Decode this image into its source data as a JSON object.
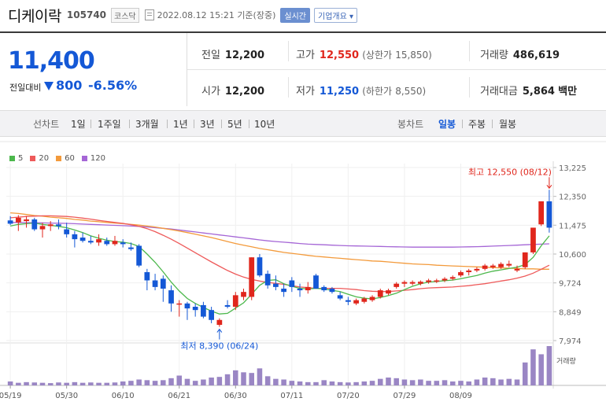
{
  "header": {
    "name": "디케이락",
    "code": "105740",
    "market": "코스닥",
    "timestamp": "2022.08.12 15:21 기준(장중)",
    "realtime_label": "실시간",
    "overview_label": "기업개요 ▾"
  },
  "quote": {
    "price": "11,400",
    "change_label": "전일대비",
    "change": "800",
    "change_rate": "-6.56%",
    "direction": "down"
  },
  "stats": {
    "prev_close_label": "전일",
    "prev_close": "12,200",
    "high_label": "고가",
    "high": "12,550",
    "upper_limit_label": "(상한가",
    "upper_limit": "15,850)",
    "volume_label": "거래량",
    "volume": "486,619",
    "open_label": "시가",
    "open": "12,200",
    "low_label": "저가",
    "low": "11,250",
    "lower_limit_label": "(하한가",
    "lower_limit": "8,550)",
    "amount_label": "거래대금",
    "amount": "5,864",
    "amount_unit": "백만"
  },
  "periods": {
    "line_label": "선차트",
    "items": [
      "1일",
      "1주일",
      "3개월",
      "1년",
      "3년",
      "5년",
      "10년"
    ],
    "candle_label": "봉차트",
    "candle_items": [
      "일봉",
      "주봉",
      "월봉"
    ],
    "selected_candle": "일봉"
  },
  "colors": {
    "up": "#e0261c",
    "down": "#1458d6",
    "ma5": "#4cb84c",
    "ma20": "#ee5a5a",
    "ma60": "#f39a3b",
    "ma120": "#a566d6",
    "volume": "#9a86c4"
  },
  "chart_data": {
    "type": "candlestick",
    "ma_legend": [
      {
        "name": "5",
        "color": "#4cb84c"
      },
      {
        "name": "20",
        "color": "#ee5a5a"
      },
      {
        "name": "60",
        "color": "#f39a3b"
      },
      {
        "name": "120",
        "color": "#a566d6"
      }
    ],
    "y_ticks": [
      13225,
      12350,
      11475,
      10600,
      9724,
      8849,
      7974
    ],
    "y_tick_labels": [
      "13,225",
      "12,350",
      "11,475",
      "10,600",
      "9,724",
      "8,849",
      "7,974"
    ],
    "ylim": [
      7974,
      13225
    ],
    "x_tick_labels": [
      "05/19",
      "05/30",
      "06/10",
      "06/21",
      "06/30",
      "07/11",
      "07/20",
      "07/29",
      "08/09"
    ],
    "x_tick_indices": [
      0,
      7,
      14,
      21,
      28,
      35,
      42,
      49,
      56
    ],
    "high_annotation": "최고 12,550 (08/12)",
    "low_annotation": "최저 8,390 (06/24)",
    "volume_label": "거래량",
    "candles": [
      {
        "o": 11620,
        "h": 11750,
        "l": 11480,
        "c": 11520
      },
      {
        "o": 11560,
        "h": 11780,
        "l": 11300,
        "c": 11700
      },
      {
        "o": 11600,
        "h": 11750,
        "l": 11400,
        "c": 11650
      },
      {
        "o": 11650,
        "h": 11700,
        "l": 11300,
        "c": 11350
      },
      {
        "o": 11350,
        "h": 11550,
        "l": 11100,
        "c": 11450
      },
      {
        "o": 11450,
        "h": 11600,
        "l": 11300,
        "c": 11500
      },
      {
        "o": 11500,
        "h": 11650,
        "l": 11350,
        "c": 11450
      },
      {
        "o": 11350,
        "h": 11550,
        "l": 11100,
        "c": 11200
      },
      {
        "o": 11200,
        "h": 11300,
        "l": 10800,
        "c": 11050
      },
      {
        "o": 11100,
        "h": 11250,
        "l": 10950,
        "c": 11000
      },
      {
        "o": 11000,
        "h": 11150,
        "l": 10900,
        "c": 10950
      },
      {
        "o": 10950,
        "h": 11200,
        "l": 10850,
        "c": 11050
      },
      {
        "o": 11000,
        "h": 11100,
        "l": 10850,
        "c": 10900
      },
      {
        "o": 10900,
        "h": 11150,
        "l": 10850,
        "c": 11000
      },
      {
        "o": 10950,
        "h": 11050,
        "l": 10800,
        "c": 10900
      },
      {
        "o": 10800,
        "h": 10950,
        "l": 10700,
        "c": 10750
      },
      {
        "o": 10850,
        "h": 10900,
        "l": 10200,
        "c": 10250
      },
      {
        "o": 10050,
        "h": 10150,
        "l": 9500,
        "c": 9800
      },
      {
        "o": 9800,
        "h": 10000,
        "l": 9500,
        "c": 9600
      },
      {
        "o": 9850,
        "h": 9950,
        "l": 9150,
        "c": 9550
      },
      {
        "o": 9500,
        "h": 9650,
        "l": 8850,
        "c": 9100
      },
      {
        "o": 9100,
        "h": 9200,
        "l": 8700,
        "c": 9100
      },
      {
        "o": 9100,
        "h": 9150,
        "l": 8600,
        "c": 8950
      },
      {
        "o": 9000,
        "h": 9100,
        "l": 8700,
        "c": 8900
      },
      {
        "o": 9050,
        "h": 9150,
        "l": 8650,
        "c": 8700
      },
      {
        "o": 8900,
        "h": 9000,
        "l": 8500,
        "c": 8600
      },
      {
        "o": 8450,
        "h": 8650,
        "l": 8390,
        "c": 8600
      },
      {
        "o": 9050,
        "h": 9200,
        "l": 8950,
        "c": 9000
      },
      {
        "o": 9000,
        "h": 9450,
        "l": 8900,
        "c": 9350
      },
      {
        "o": 9300,
        "h": 9550,
        "l": 9200,
        "c": 9450
      },
      {
        "o": 9300,
        "h": 10500,
        "l": 9200,
        "c": 10500
      },
      {
        "o": 10500,
        "h": 10600,
        "l": 9900,
        "c": 9950
      },
      {
        "o": 10000,
        "h": 10100,
        "l": 9550,
        "c": 9650
      },
      {
        "o": 9700,
        "h": 9950,
        "l": 9500,
        "c": 9600
      },
      {
        "o": 9550,
        "h": 9700,
        "l": 9300,
        "c": 9450
      },
      {
        "o": 9800,
        "h": 9900,
        "l": 9450,
        "c": 9600
      },
      {
        "o": 9550,
        "h": 9700,
        "l": 9300,
        "c": 9500
      },
      {
        "o": 9500,
        "h": 9750,
        "l": 9400,
        "c": 9600
      },
      {
        "o": 9950,
        "h": 10000,
        "l": 9550,
        "c": 9550
      },
      {
        "o": 9600,
        "h": 9650,
        "l": 9450,
        "c": 9500
      },
      {
        "o": 9550,
        "h": 9600,
        "l": 9400,
        "c": 9450
      },
      {
        "o": 9350,
        "h": 9450,
        "l": 9200,
        "c": 9250
      },
      {
        "o": 9200,
        "h": 9300,
        "l": 9050,
        "c": 9150
      },
      {
        "o": 9100,
        "h": 9250,
        "l": 9050,
        "c": 9200
      },
      {
        "o": 9150,
        "h": 9300,
        "l": 9100,
        "c": 9250
      },
      {
        "o": 9200,
        "h": 9350,
        "l": 9150,
        "c": 9300
      },
      {
        "o": 9300,
        "h": 9550,
        "l": 9250,
        "c": 9500
      },
      {
        "o": 9400,
        "h": 9550,
        "l": 9350,
        "c": 9500
      },
      {
        "o": 9600,
        "h": 9750,
        "l": 9550,
        "c": 9700
      },
      {
        "o": 9700,
        "h": 9800,
        "l": 9600,
        "c": 9750
      },
      {
        "o": 9700,
        "h": 9800,
        "l": 9650,
        "c": 9750
      },
      {
        "o": 9700,
        "h": 9800,
        "l": 9650,
        "c": 9760
      },
      {
        "o": 9750,
        "h": 9850,
        "l": 9700,
        "c": 9800
      },
      {
        "o": 9760,
        "h": 9850,
        "l": 9720,
        "c": 9800
      },
      {
        "o": 9800,
        "h": 9900,
        "l": 9750,
        "c": 9850
      },
      {
        "o": 9850,
        "h": 9950,
        "l": 9800,
        "c": 9900
      },
      {
        "o": 9950,
        "h": 10100,
        "l": 9900,
        "c": 10050
      },
      {
        "o": 10050,
        "h": 10150,
        "l": 9950,
        "c": 10100
      },
      {
        "o": 10100,
        "h": 10200,
        "l": 10050,
        "c": 10150
      },
      {
        "o": 10150,
        "h": 10300,
        "l": 10100,
        "c": 10250
      },
      {
        "o": 10200,
        "h": 10300,
        "l": 10150,
        "c": 10250
      },
      {
        "o": 10200,
        "h": 10350,
        "l": 10150,
        "c": 10300
      },
      {
        "o": 10250,
        "h": 10400,
        "l": 10200,
        "c": 10300
      },
      {
        "o": 10100,
        "h": 10250,
        "l": 10050,
        "c": 10150
      },
      {
        "o": 10200,
        "h": 10650,
        "l": 10150,
        "c": 10650
      },
      {
        "o": 10650,
        "h": 11400,
        "l": 10600,
        "c": 11400
      },
      {
        "o": 11500,
        "h": 12200,
        "l": 11450,
        "c": 12200
      },
      {
        "o": 12200,
        "h": 12550,
        "l": 11250,
        "c": 11400
      }
    ],
    "volumes": [
      12,
      8,
      10,
      9,
      8,
      7,
      9,
      8,
      10,
      8,
      9,
      8,
      8,
      9,
      12,
      14,
      18,
      16,
      14,
      16,
      22,
      30,
      20,
      14,
      18,
      24,
      26,
      34,
      46,
      40,
      38,
      52,
      28,
      20,
      18,
      14,
      12,
      10,
      10,
      16,
      12,
      10,
      9,
      10,
      12,
      14,
      20,
      24,
      22,
      18,
      16,
      18,
      14,
      14,
      16,
      12,
      14,
      12,
      18,
      24,
      22,
      18,
      20,
      18,
      70,
      110,
      95,
      120
    ],
    "ma5": [
      11450,
      11500,
      11520,
      11540,
      11500,
      11470,
      11440,
      11400,
      11330,
      11250,
      11150,
      11080,
      11020,
      10980,
      10960,
      10920,
      10830,
      10600,
      10350,
      10060,
      9750,
      9480,
      9250,
      9100,
      8980,
      8870,
      8780,
      8800,
      8960,
      9120,
      9380,
      9650,
      9800,
      9820,
      9700,
      9620,
      9560,
      9540,
      9560,
      9540,
      9500,
      9460,
      9380,
      9300,
      9260,
      9240,
      9280,
      9340,
      9410,
      9520,
      9620,
      9700,
      9750,
      9770,
      9790,
      9810,
      9850,
      9900,
      9950,
      10020,
      10080,
      10120,
      10160,
      10200,
      10280,
      10500,
      10850,
      11150
    ],
    "ma20": [
      11700,
      11720,
      11740,
      11750,
      11760,
      11760,
      11750,
      11740,
      11720,
      11690,
      11660,
      11620,
      11590,
      11560,
      11530,
      11490,
      11440,
      11370,
      11280,
      11170,
      11050,
      10920,
      10780,
      10640,
      10500,
      10360,
      10230,
      10100,
      9990,
      9900,
      9830,
      9780,
      9740,
      9710,
      9680,
      9640,
      9600,
      9580,
      9560,
      9560,
      9560,
      9560,
      9540,
      9520,
      9490,
      9470,
      9460,
      9460,
      9480,
      9500,
      9520,
      9550,
      9570,
      9580,
      9590,
      9600,
      9620,
      9640,
      9670,
      9700,
      9740,
      9780,
      9820,
      9870,
      9930,
      10020,
      10140,
      10260
    ],
    "ma60": [
      11850,
      11830,
      11800,
      11770,
      11750,
      11720,
      11700,
      11680,
      11650,
      11630,
      11600,
      11580,
      11560,
      11540,
      11520,
      11500,
      11480,
      11450,
      11420,
      11380,
      11340,
      11300,
      11250,
      11200,
      11150,
      11100,
      11040,
      10980,
      10920,
      10870,
      10820,
      10770,
      10730,
      10690,
      10650,
      10620,
      10590,
      10560,
      10530,
      10510,
      10490,
      10470,
      10450,
      10430,
      10410,
      10390,
      10380,
      10360,
      10340,
      10320,
      10300,
      10290,
      10280,
      10260,
      10250,
      10240,
      10230,
      10220,
      10210,
      10200,
      10190,
      10180,
      10170,
      10160,
      10150,
      10150,
      10140,
      10140
    ],
    "ma120": [
      11560,
      11560,
      11555,
      11550,
      11545,
      11540,
      11535,
      11530,
      11520,
      11510,
      11500,
      11490,
      11480,
      11470,
      11460,
      11450,
      11440,
      11420,
      11400,
      11380,
      11360,
      11330,
      11300,
      11270,
      11240,
      11210,
      11180,
      11150,
      11120,
      11090,
      11060,
      11030,
      11000,
      10980,
      10960,
      10940,
      10920,
      10900,
      10890,
      10880,
      10870,
      10860,
      10850,
      10845,
      10840,
      10835,
      10830,
      10825,
      10820,
      10815,
      10810,
      10810,
      10810,
      10810,
      10810,
      10810,
      10815,
      10820,
      10825,
      10830,
      10840,
      10850,
      10860,
      10870,
      10880,
      10890,
      10900,
      10910
    ]
  }
}
